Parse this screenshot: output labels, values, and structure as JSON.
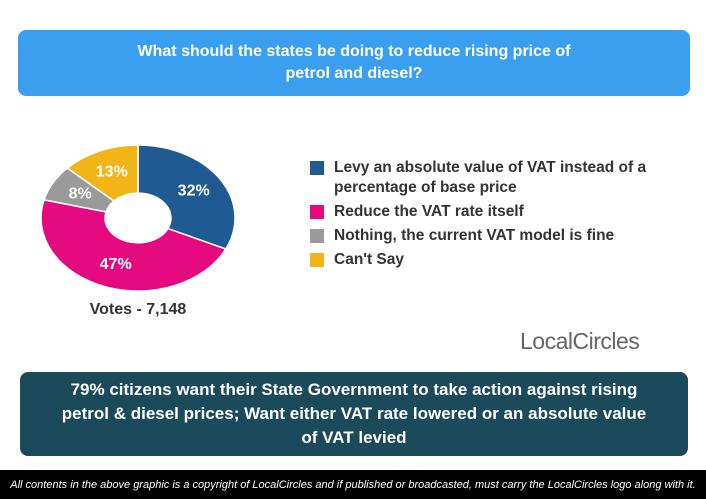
{
  "chart_data": {
    "type": "pie",
    "donut": true,
    "title": "What should the states be doing to reduce rising price of petrol and diesel?",
    "categories": [
      "Levy an absolute value of VAT instead of a percentage of base price",
      "Reduce the VAT rate itself",
      "Nothing, the current VAT model is fine",
      "Can't Say"
    ],
    "values": [
      32,
      47,
      8,
      13
    ],
    "value_labels": [
      "32%",
      "47%",
      "8%",
      "13%"
    ],
    "colors": [
      "#1f5a93",
      "#e4097f",
      "#9a9a9a",
      "#f2b518"
    ]
  },
  "votes": "Votes - 7,148",
  "logo": "LocalCircles",
  "summary": "79% citizens want their State Government to take action against rising petrol & diesel prices; Want either VAT rate lowered or an absolute value of VAT levied",
  "footer": "All contents in the above graphic is a copyright of LocalCircles and if published or broadcasted, must carry the LocalCircles logo along with it."
}
